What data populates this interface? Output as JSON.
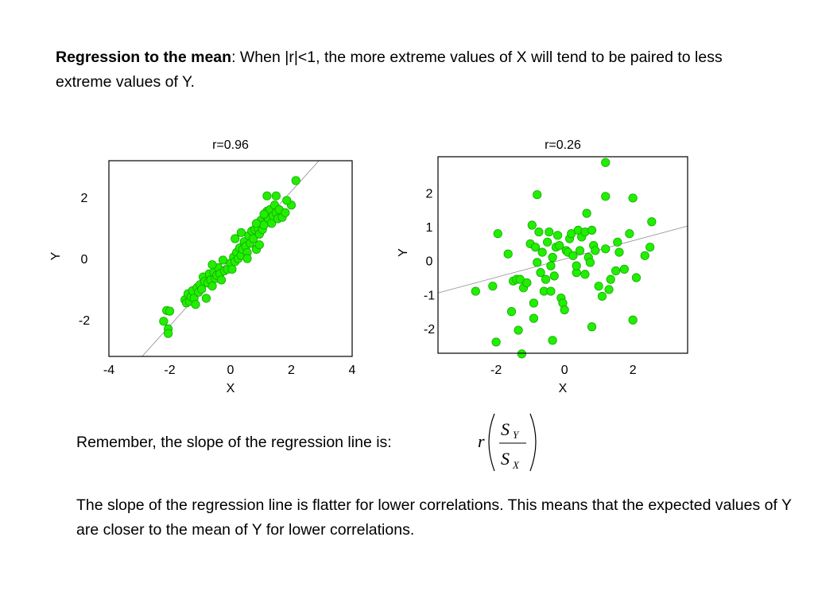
{
  "intro": {
    "bold": "Regression to the mean",
    "rest": ": When |r|<1, the more extreme  values of X will tend to be paired to less extreme values of Y."
  },
  "remember_text": "Remember, the slope of the regression  line is:",
  "formula": {
    "r": "r",
    "num": "S",
    "num_sub": "Y",
    "den": "S",
    "den_sub": "X"
  },
  "closing_text": "The slope of the regression line is flatter for lower correlations.  This means that the expected values of Y are closer to the mean of Y for lower correlations.",
  "colors": {
    "point_fill": "#22ee00",
    "point_stroke": "#11aa00",
    "regression_line": "#999999"
  },
  "chart_data": [
    {
      "type": "scatter",
      "title": "r=0.96",
      "xlabel": "X",
      "ylabel": "Y",
      "xlim": [
        -4,
        4
      ],
      "ylim": [
        -3.2,
        3.2
      ],
      "xticks": [
        -4,
        -2,
        0,
        2,
        4
      ],
      "yticks": [
        -2,
        0,
        2
      ],
      "regression_line": {
        "slope": 1.1,
        "intercept": 0
      },
      "points": [
        [
          -2.2,
          -2.05
        ],
        [
          -2.05,
          -2.3
        ],
        [
          -2.05,
          -2.45
        ],
        [
          -2.1,
          -1.7
        ],
        [
          -2.0,
          -1.72
        ],
        [
          -1.5,
          -1.35
        ],
        [
          -1.45,
          -1.45
        ],
        [
          -1.4,
          -1.15
        ],
        [
          -1.35,
          -1.4
        ],
        [
          -1.3,
          -1.25
        ],
        [
          -1.25,
          -1.05
        ],
        [
          -1.2,
          -1.3
        ],
        [
          -1.15,
          -1.5
        ],
        [
          -1.1,
          -0.95
        ],
        [
          -1.05,
          -1.1
        ],
        [
          -1.0,
          -0.85
        ],
        [
          -0.95,
          -1.0
        ],
        [
          -0.9,
          -0.6
        ],
        [
          -0.85,
          -0.75
        ],
        [
          -0.8,
          -1.3
        ],
        [
          -0.75,
          -0.8
        ],
        [
          -0.7,
          -0.5
        ],
        [
          -0.65,
          -0.7
        ],
        [
          -0.6,
          -0.9
        ],
        [
          -0.55,
          -0.45
        ],
        [
          -0.5,
          -0.65
        ],
        [
          -0.45,
          -0.55
        ],
        [
          -0.4,
          -0.3
        ],
        [
          -0.35,
          -0.5
        ],
        [
          -0.3,
          -0.7
        ],
        [
          -0.2,
          -0.4
        ],
        [
          -0.1,
          -0.35
        ],
        [
          0.0,
          -0.15
        ],
        [
          0.05,
          -0.35
        ],
        [
          0.1,
          0.05
        ],
        [
          0.15,
          -0.1
        ],
        [
          0.2,
          0.2
        ],
        [
          0.25,
          0.0
        ],
        [
          0.3,
          0.35
        ],
        [
          0.35,
          0.1
        ],
        [
          0.4,
          0.3
        ],
        [
          0.45,
          0.55
        ],
        [
          0.5,
          0.4
        ],
        [
          0.55,
          0.2
        ],
        [
          0.6,
          0.75
        ],
        [
          0.65,
          0.5
        ],
        [
          0.7,
          0.9
        ],
        [
          0.75,
          0.65
        ],
        [
          0.8,
          0.95
        ],
        [
          0.85,
          0.3
        ],
        [
          0.9,
          1.0
        ],
        [
          0.95,
          0.8
        ],
        [
          1.0,
          1.25
        ],
        [
          1.05,
          0.95
        ],
        [
          1.1,
          1.1
        ],
        [
          1.15,
          1.4
        ],
        [
          1.2,
          1.55
        ],
        [
          1.25,
          1.3
        ],
        [
          1.3,
          1.6
        ],
        [
          1.35,
          1.15
        ],
        [
          1.4,
          1.4
        ],
        [
          1.45,
          1.75
        ],
        [
          1.5,
          1.5
        ],
        [
          1.55,
          1.3
        ],
        [
          1.6,
          1.6
        ],
        [
          1.7,
          1.35
        ],
        [
          1.8,
          1.5
        ],
        [
          2.0,
          1.75
        ],
        [
          0.55,
          0.0
        ],
        [
          0.35,
          0.85
        ],
        [
          0.15,
          0.65
        ],
        [
          0.85,
          1.15
        ],
        [
          1.2,
          2.05
        ],
        [
          2.15,
          2.55
        ],
        [
          1.5,
          2.05
        ],
        [
          1.1,
          1.45
        ],
        [
          0.95,
          0.45
        ],
        [
          -0.6,
          -0.2
        ],
        [
          -0.25,
          -0.05
        ],
        [
          1.85,
          1.9
        ]
      ]
    },
    {
      "type": "scatter",
      "title": "r=0.26",
      "xlabel": "X",
      "ylabel": "Y",
      "xlim": [
        -3.7,
        3.6
      ],
      "ylim": [
        -2.73,
        3.07
      ],
      "xticks": [
        -2,
        0,
        2
      ],
      "yticks": [
        -2,
        -1,
        0,
        1,
        2
      ],
      "regression_line": {
        "slope": 0.27,
        "intercept": 0.05
      },
      "points": [
        [
          -2.6,
          -0.9
        ],
        [
          -2.1,
          -0.75
        ],
        [
          -1.95,
          0.8
        ],
        [
          -1.65,
          0.2
        ],
        [
          -1.5,
          -0.6
        ],
        [
          -1.4,
          -0.55
        ],
        [
          -1.3,
          -0.55
        ],
        [
          -1.2,
          -0.8
        ],
        [
          -1.1,
          -0.65
        ],
        [
          -1.0,
          0.5
        ],
        [
          -0.95,
          1.05
        ],
        [
          -0.9,
          -1.25
        ],
        [
          -0.85,
          0.4
        ],
        [
          -0.8,
          -0.05
        ],
        [
          -0.75,
          0.85
        ],
        [
          -0.7,
          -0.35
        ],
        [
          -0.65,
          0.25
        ],
        [
          -0.55,
          -0.55
        ],
        [
          -0.5,
          0.55
        ],
        [
          -0.45,
          0.85
        ],
        [
          -0.4,
          -0.15
        ],
        [
          -0.35,
          0.1
        ],
        [
          -0.3,
          -0.45
        ],
        [
          -0.25,
          0.4
        ],
        [
          -0.2,
          0.75
        ],
        [
          -0.1,
          -1.1
        ],
        [
          -0.05,
          -1.25
        ],
        [
          0.0,
          -1.45
        ],
        [
          0.05,
          0.3
        ],
        [
          0.1,
          0.25
        ],
        [
          0.15,
          0.65
        ],
        [
          0.2,
          0.8
        ],
        [
          0.25,
          0.15
        ],
        [
          0.35,
          -0.35
        ],
        [
          0.4,
          0.9
        ],
        [
          0.5,
          0.7
        ],
        [
          0.6,
          0.85
        ],
        [
          0.7,
          0.1
        ],
        [
          0.75,
          -0.05
        ],
        [
          0.8,
          0.9
        ],
        [
          0.85,
          0.45
        ],
        [
          0.9,
          0.3
        ],
        [
          1.0,
          -0.75
        ],
        [
          1.1,
          -1.05
        ],
        [
          1.2,
          0.35
        ],
        [
          1.3,
          -0.85
        ],
        [
          1.55,
          0.55
        ],
        [
          1.6,
          0.25
        ],
        [
          1.75,
          -0.25
        ],
        [
          1.9,
          0.8
        ],
        [
          2.0,
          -1.75
        ],
        [
          2.0,
          1.85
        ],
        [
          2.1,
          -0.5
        ],
        [
          2.35,
          0.15
        ],
        [
          2.5,
          0.4
        ],
        [
          -1.25,
          -2.75
        ],
        [
          -1.35,
          -2.05
        ],
        [
          -2.0,
          -2.4
        ],
        [
          -0.35,
          -2.35
        ],
        [
          -1.55,
          -1.5
        ],
        [
          -0.8,
          1.95
        ],
        [
          -0.9,
          -1.7
        ],
        [
          0.8,
          -1.95
        ],
        [
          1.2,
          2.9
        ],
        [
          1.2,
          1.9
        ],
        [
          0.65,
          1.4
        ],
        [
          0.6,
          -0.4
        ],
        [
          -0.6,
          -0.9
        ],
        [
          1.5,
          -0.3
        ],
        [
          2.55,
          1.15
        ],
        [
          -0.4,
          -0.9
        ],
        [
          0.35,
          -0.15
        ],
        [
          -0.15,
          0.45
        ],
        [
          0.45,
          0.3
        ],
        [
          1.35,
          -0.55
        ]
      ]
    }
  ]
}
